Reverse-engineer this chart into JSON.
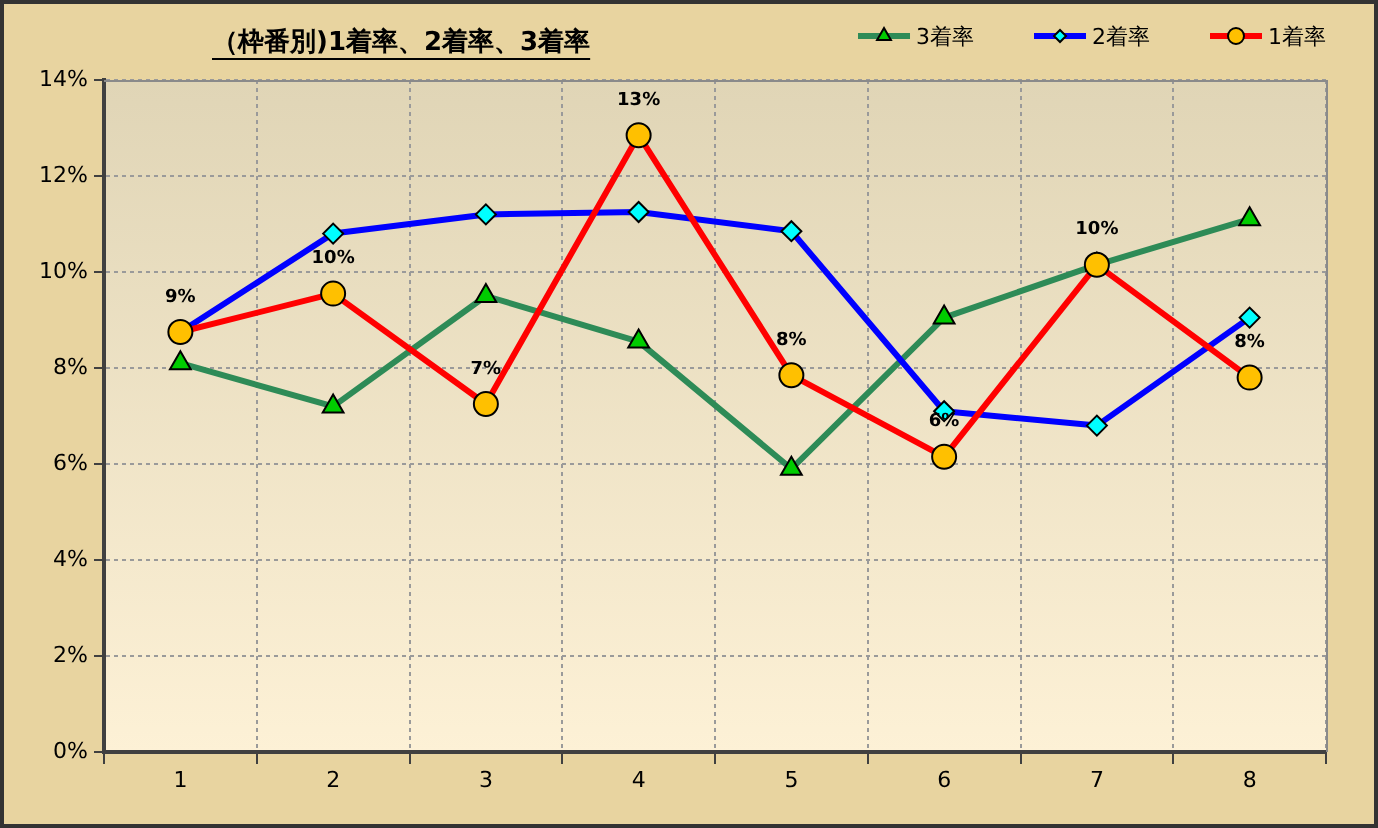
{
  "chart_data": {
    "type": "line",
    "title": "（枠番別)1着率、2着率、3着率",
    "categories": [
      "1",
      "2",
      "3",
      "4",
      "5",
      "6",
      "7",
      "8"
    ],
    "series": [
      {
        "name": "3着率",
        "color": "#2e8b57",
        "colors": [
          "#00cc00",
          "#00cc00",
          "#00cc00",
          "#00cc00",
          "#00cc00",
          "#00cc00",
          "#00cc00",
          "#00cc00"
        ],
        "marker": "triangle",
        "values": [
          8.1,
          7.2,
          9.5,
          8.55,
          5.9,
          9.05,
          10.15,
          11.1
        ]
      },
      {
        "name": "2着率",
        "color": "#0000ff",
        "colors": [
          "#00ffff",
          "#00ffff",
          "#00ffff",
          "#00ffff",
          "#00ffff",
          "#00ffff",
          "#00ffff",
          "#00ffff"
        ],
        "marker": "diamond",
        "values": [
          8.75,
          10.8,
          11.2,
          11.25,
          10.85,
          7.1,
          6.8,
          9.05
        ]
      },
      {
        "name": "1着率",
        "color": "#ff0000",
        "colors": [
          "#ffc000",
          "#ffc000",
          "#ffc000",
          "#ffc000",
          "#ffc000",
          "#ffc000",
          "#ffc000",
          "#ffc000"
        ],
        "marker": "circle",
        "values": [
          8.75,
          9.55,
          7.25,
          12.85,
          7.85,
          6.15,
          10.15,
          7.8
        ],
        "value_labels": [
          "9%",
          "10%",
          "7%",
          "13%",
          "8%",
          "6%",
          "10%",
          "8%"
        ]
      }
    ],
    "ylim": [
      0,
      14
    ],
    "yticks": [
      {
        "value": 0,
        "label": "0%"
      },
      {
        "value": 2,
        "label": "2%"
      },
      {
        "value": 4,
        "label": "4%"
      },
      {
        "value": 6,
        "label": "6%"
      },
      {
        "value": 8,
        "label": "8%"
      },
      {
        "value": 10,
        "label": "10%"
      },
      {
        "value": 12,
        "label": "12%"
      },
      {
        "value": 14,
        "label": "14%"
      }
    ],
    "grid": true,
    "legend": "top right"
  }
}
